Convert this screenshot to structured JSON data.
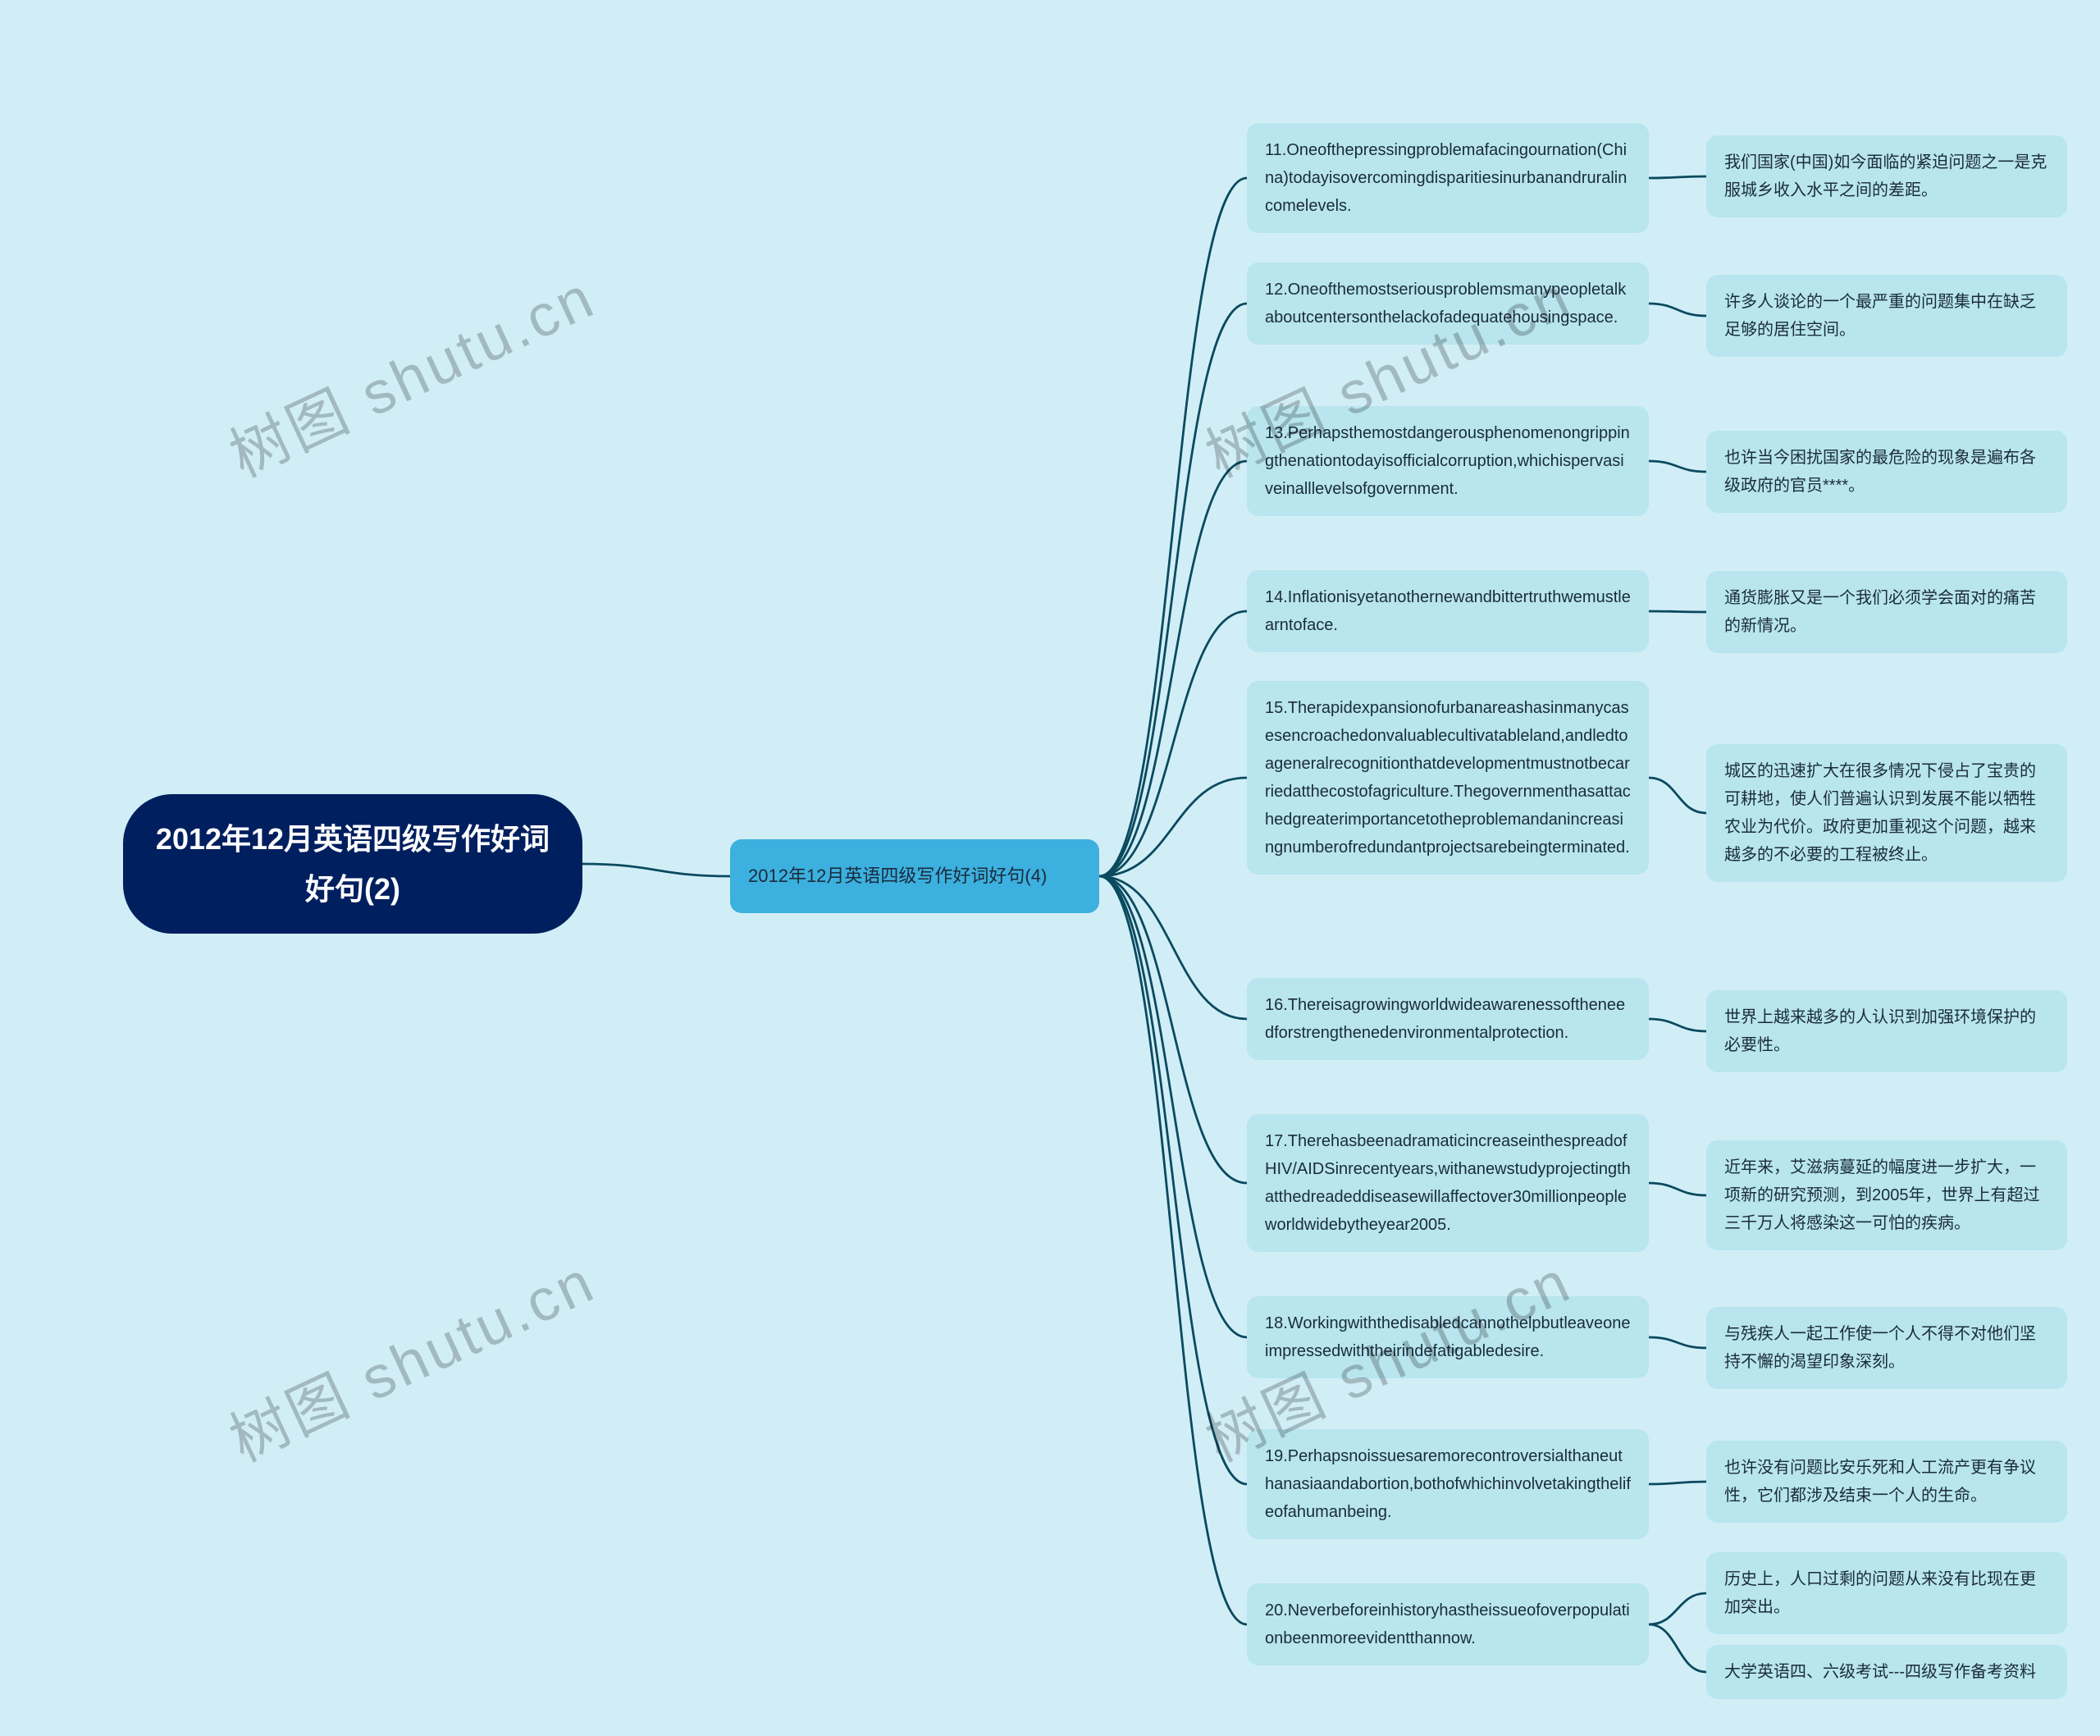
{
  "background_color": "#d1eef7",
  "root": {
    "text": "2012年12月英语四级写作好词好句(2)",
    "bg_color": "#001f5f",
    "fg_color": "#ffffff",
    "font_size": 36
  },
  "level1": {
    "text": "2012年12月英语四级写作好词好句(4)",
    "bg_color": "#3cb0de",
    "fg_color": "#1a2b3c",
    "font_size": 22
  },
  "items": [
    {
      "en": "11.Oneofthepressingproblemafacingournation(China)todayisovercomingdisparitiesinurbanandruralincomelevels.",
      "cn": "我们国家(中国)如今面临的紧迫问题之一是克服城乡收入水平之间的差距。"
    },
    {
      "en": "12.Oneofthemostseriousproblemsmanypeopletalkaboutcentersonthelackofadequatehousingspace.",
      "cn": "许多人谈论的一个最严重的问题集中在缺乏足够的居住空间。"
    },
    {
      "en": "13.Perhapsthemostdangerousphenomenongrippingthenationtodayisofficialcorruption,whichispervasiveinalllevelsofgovernment.",
      "cn": "也许当今困扰国家的最危险的现象是遍布各级政府的官员****。"
    },
    {
      "en": "14.Inflationisyetanothernewandbittertruthwemustlearntoface.",
      "cn": "通货膨胀又是一个我们必须学会面对的痛苦的新情况。"
    },
    {
      "en": "15.Therapidexpansionofurbanareashasinmanycasesencroachedonvaluablecultivatableland,andledtoageneralrecognitionthatdevelopmentmustnotbecarriedatthecostofagriculture.Thegovernmenthasattachedgreaterimportancetotheproblemandanincreasingnumberofredundantprojectsarebeingterminated.",
      "cn": "城区的迅速扩大在很多情况下侵占了宝贵的可耕地，使人们普遍认识到发展不能以牺牲农业为代价。政府更加重视这个问题，越来越多的不必要的工程被终止。"
    },
    {
      "en": "16.Thereisagrowingworldwideawarenessoftheneedforstrengthenedenvironmentalprotection.",
      "cn": "世界上越来越多的人认识到加强环境保护的必要性。"
    },
    {
      "en": "17.TherehasbeenadramaticincreaseinthespreadofHIV/AIDSinrecentyears,withanewstudyprojectingthatthedreadeddiseasewillaffectover30millionpeopleworldwidebytheyear2005.",
      "cn": "近年来，艾滋病蔓延的幅度进一步扩大，一项新的研究预测，到2005年，世界上有超过三千万人将感染这一可怕的疾病。"
    },
    {
      "en": "18.Workingwiththedisabledcannothelpbutleaveoneimpressedwiththeirindefatigabledesire.",
      "cn": "与残疾人一起工作使一个人不得不对他们坚持不懈的渴望印象深刻。"
    },
    {
      "en": "19.Perhapsnoissuesaremorecontroversialthaneuthanasiaandabortion,bothofwhichinvolvetakingthelifeofahumanbeing.",
      "cn": "也许没有问题比安乐死和人工流产更有争议性，它们都涉及结束一个人的生命。"
    },
    {
      "en": "20.Neverbeforeinhistoryhastheissueofoverpopulationbeenmoreevidentthannow.",
      "cn_a": "历史上，人口过剩的问题从来没有比现在更加突出。",
      "cn_b": "大学英语四、六级考试---四级写作备考资料"
    }
  ],
  "node_colors": {
    "level2_bg": "#b8e5ee",
    "level3_bg": "#b8e5ee",
    "text_color": "#1a2b3c"
  },
  "edge_color": "#0b4a5e",
  "watermarks": [
    {
      "text": "树图 shutu.cn"
    },
    {
      "text": "树图 shutu.cn"
    },
    {
      "text": "树图 shutu.cn"
    },
    {
      "text": "树图 shutu.cn"
    }
  ]
}
